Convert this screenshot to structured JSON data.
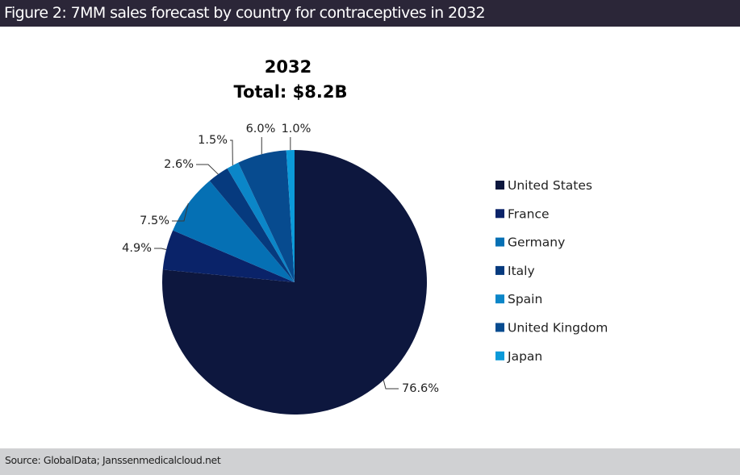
{
  "figure": {
    "header": "Figure 2: 7MM sales forecast by country for contraceptives in 2032",
    "source": "Source: GlobalData; Janssenmedicalcloud.net"
  },
  "chart_data": {
    "type": "pie",
    "title": "2032",
    "subtitle": "Total: $8.2B",
    "unit": "%",
    "legend_position": "right",
    "start_angle_deg": 0,
    "direction": "clockwise",
    "slices": [
      {
        "label": "United States",
        "value": 76.6,
        "display": "76.6%",
        "color": "#0d173e"
      },
      {
        "label": "France",
        "value": 4.9,
        "display": "4.9%",
        "color": "#0a2369"
      },
      {
        "label": "Germany",
        "value": 7.5,
        "display": "7.5%",
        "color": "#0570b4"
      },
      {
        "label": "Italy",
        "value": 2.6,
        "display": "2.6%",
        "color": "#063a7e"
      },
      {
        "label": "Spain",
        "value": 1.5,
        "display": "1.5%",
        "color": "#0b86c8"
      },
      {
        "label": "United Kingdom",
        "value": 6.0,
        "display": "6.0%",
        "color": "#074b8f"
      },
      {
        "label": "Japan",
        "value": 1.0,
        "display": "1.0%",
        "color": "#0b9ad9"
      }
    ]
  }
}
